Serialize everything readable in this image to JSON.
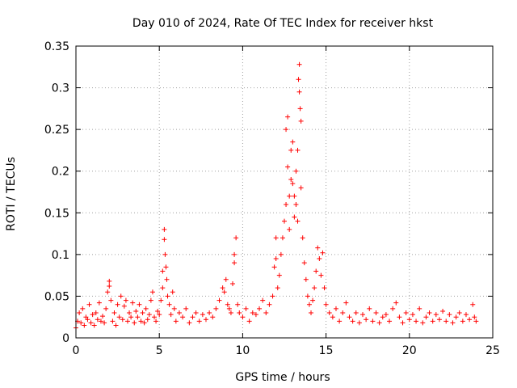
{
  "chart_data": {
    "type": "scatter",
    "title": "Day 010 of 2024, Rate Of TEC Index for receiver hkst",
    "xlabel": "GPS time / hours",
    "ylabel": "ROTI / TECUs",
    "xlim": [
      0,
      25
    ],
    "ylim": [
      0,
      0.35
    ],
    "x_ticks": [
      "0",
      "5",
      "10",
      "15",
      "20",
      "25"
    ],
    "y_ticks": [
      "0",
      "0.05",
      "0.1",
      "0.15",
      "0.2",
      "0.25",
      "0.3",
      "0.35"
    ],
    "x_tick_values": [
      0,
      5,
      10,
      15,
      20,
      25
    ],
    "y_tick_values": [
      0,
      0.05,
      0.1,
      0.15,
      0.2,
      0.25,
      0.3,
      0.35
    ],
    "grid": true,
    "marker": "+",
    "color": "#ff0000",
    "points": [
      [
        0.0,
        0.012
      ],
      [
        0.1,
        0.02
      ],
      [
        0.2,
        0.03
      ],
      [
        0.3,
        0.018
      ],
      [
        0.4,
        0.035
      ],
      [
        0.5,
        0.015
      ],
      [
        0.6,
        0.025
      ],
      [
        0.7,
        0.022
      ],
      [
        0.8,
        0.04
      ],
      [
        0.9,
        0.018
      ],
      [
        1.0,
        0.028
      ],
      [
        1.1,
        0.015
      ],
      [
        1.2,
        0.03
      ],
      [
        1.3,
        0.022
      ],
      [
        1.4,
        0.042
      ],
      [
        1.5,
        0.02
      ],
      [
        1.6,
        0.026
      ],
      [
        1.7,
        0.018
      ],
      [
        1.8,
        0.035
      ],
      [
        1.9,
        0.055
      ],
      [
        2.0,
        0.068
      ],
      [
        2.0,
        0.062
      ],
      [
        2.1,
        0.045
      ],
      [
        2.2,
        0.02
      ],
      [
        2.3,
        0.03
      ],
      [
        2.4,
        0.015
      ],
      [
        2.5,
        0.04
      ],
      [
        2.6,
        0.025
      ],
      [
        2.7,
        0.05
      ],
      [
        2.8,
        0.022
      ],
      [
        2.9,
        0.038
      ],
      [
        3.0,
        0.045
      ],
      [
        3.1,
        0.02
      ],
      [
        3.2,
        0.03
      ],
      [
        3.3,
        0.025
      ],
      [
        3.4,
        0.042
      ],
      [
        3.5,
        0.018
      ],
      [
        3.6,
        0.032
      ],
      [
        3.7,
        0.025
      ],
      [
        3.8,
        0.04
      ],
      [
        3.9,
        0.02
      ],
      [
        4.0,
        0.03
      ],
      [
        4.1,
        0.018
      ],
      [
        4.2,
        0.035
      ],
      [
        4.3,
        0.022
      ],
      [
        4.4,
        0.028
      ],
      [
        4.5,
        0.045
      ],
      [
        4.6,
        0.055
      ],
      [
        4.7,
        0.025
      ],
      [
        4.8,
        0.02
      ],
      [
        4.9,
        0.032
      ],
      [
        5.0,
        0.028
      ],
      [
        5.1,
        0.045
      ],
      [
        5.2,
        0.08
      ],
      [
        5.2,
        0.06
      ],
      [
        5.3,
        0.13
      ],
      [
        5.3,
        0.118
      ],
      [
        5.35,
        0.1
      ],
      [
        5.4,
        0.085
      ],
      [
        5.45,
        0.07
      ],
      [
        5.5,
        0.05
      ],
      [
        5.6,
        0.04
      ],
      [
        5.7,
        0.028
      ],
      [
        5.8,
        0.055
      ],
      [
        5.9,
        0.035
      ],
      [
        6.0,
        0.02
      ],
      [
        6.2,
        0.03
      ],
      [
        6.4,
        0.025
      ],
      [
        6.6,
        0.035
      ],
      [
        6.8,
        0.018
      ],
      [
        7.0,
        0.025
      ],
      [
        7.2,
        0.03
      ],
      [
        7.4,
        0.02
      ],
      [
        7.6,
        0.028
      ],
      [
        7.8,
        0.022
      ],
      [
        8.0,
        0.03
      ],
      [
        8.2,
        0.025
      ],
      [
        8.4,
        0.035
      ],
      [
        8.6,
        0.045
      ],
      [
        8.8,
        0.06
      ],
      [
        8.9,
        0.055
      ],
      [
        9.0,
        0.07
      ],
      [
        9.1,
        0.04
      ],
      [
        9.2,
        0.035
      ],
      [
        9.3,
        0.03
      ],
      [
        9.4,
        0.065
      ],
      [
        9.5,
        0.1
      ],
      [
        9.5,
        0.09
      ],
      [
        9.6,
        0.12
      ],
      [
        9.7,
        0.04
      ],
      [
        9.8,
        0.03
      ],
      [
        10.0,
        0.025
      ],
      [
        10.2,
        0.035
      ],
      [
        10.4,
        0.02
      ],
      [
        10.6,
        0.03
      ],
      [
        10.8,
        0.028
      ],
      [
        11.0,
        0.035
      ],
      [
        11.2,
        0.045
      ],
      [
        11.4,
        0.03
      ],
      [
        11.6,
        0.04
      ],
      [
        11.8,
        0.05
      ],
      [
        11.9,
        0.085
      ],
      [
        12.0,
        0.12
      ],
      [
        12.0,
        0.095
      ],
      [
        12.1,
        0.06
      ],
      [
        12.2,
        0.075
      ],
      [
        12.3,
        0.1
      ],
      [
        12.4,
        0.12
      ],
      [
        12.5,
        0.14
      ],
      [
        12.6,
        0.16
      ],
      [
        12.6,
        0.25
      ],
      [
        12.7,
        0.265
      ],
      [
        12.7,
        0.205
      ],
      [
        12.8,
        0.17
      ],
      [
        12.8,
        0.13
      ],
      [
        12.9,
        0.19
      ],
      [
        12.9,
        0.225
      ],
      [
        13.0,
        0.235
      ],
      [
        13.0,
        0.185
      ],
      [
        13.1,
        0.145
      ],
      [
        13.1,
        0.17
      ],
      [
        13.2,
        0.2
      ],
      [
        13.2,
        0.16
      ],
      [
        13.3,
        0.14
      ],
      [
        13.3,
        0.225
      ],
      [
        13.35,
        0.31
      ],
      [
        13.4,
        0.328
      ],
      [
        13.4,
        0.295
      ],
      [
        13.45,
        0.275
      ],
      [
        13.5,
        0.26
      ],
      [
        13.5,
        0.18
      ],
      [
        13.6,
        0.12
      ],
      [
        13.7,
        0.09
      ],
      [
        13.8,
        0.07
      ],
      [
        13.9,
        0.05
      ],
      [
        14.0,
        0.04
      ],
      [
        14.1,
        0.03
      ],
      [
        14.2,
        0.045
      ],
      [
        14.3,
        0.06
      ],
      [
        14.4,
        0.08
      ],
      [
        14.5,
        0.108
      ],
      [
        14.6,
        0.095
      ],
      [
        14.7,
        0.075
      ],
      [
        14.8,
        0.102
      ],
      [
        14.9,
        0.06
      ],
      [
        15.0,
        0.04
      ],
      [
        15.2,
        0.03
      ],
      [
        15.4,
        0.025
      ],
      [
        15.6,
        0.035
      ],
      [
        15.8,
        0.02
      ],
      [
        16.0,
        0.03
      ],
      [
        16.2,
        0.042
      ],
      [
        16.4,
        0.025
      ],
      [
        16.6,
        0.02
      ],
      [
        16.8,
        0.03
      ],
      [
        17.0,
        0.018
      ],
      [
        17.2,
        0.028
      ],
      [
        17.4,
        0.022
      ],
      [
        17.6,
        0.035
      ],
      [
        17.8,
        0.02
      ],
      [
        18.0,
        0.03
      ],
      [
        18.2,
        0.018
      ],
      [
        18.4,
        0.025
      ],
      [
        18.6,
        0.028
      ],
      [
        18.8,
        0.02
      ],
      [
        19.0,
        0.035
      ],
      [
        19.2,
        0.042
      ],
      [
        19.4,
        0.025
      ],
      [
        19.6,
        0.018
      ],
      [
        19.8,
        0.03
      ],
      [
        20.0,
        0.022
      ],
      [
        20.2,
        0.028
      ],
      [
        20.4,
        0.02
      ],
      [
        20.6,
        0.035
      ],
      [
        20.8,
        0.018
      ],
      [
        21.0,
        0.025
      ],
      [
        21.2,
        0.03
      ],
      [
        21.4,
        0.02
      ],
      [
        21.6,
        0.028
      ],
      [
        21.8,
        0.022
      ],
      [
        22.0,
        0.032
      ],
      [
        22.2,
        0.02
      ],
      [
        22.4,
        0.028
      ],
      [
        22.6,
        0.018
      ],
      [
        22.8,
        0.025
      ],
      [
        23.0,
        0.03
      ],
      [
        23.2,
        0.02
      ],
      [
        23.4,
        0.028
      ],
      [
        23.6,
        0.022
      ],
      [
        23.8,
        0.04
      ],
      [
        23.9,
        0.025
      ],
      [
        24.0,
        0.02
      ]
    ]
  }
}
